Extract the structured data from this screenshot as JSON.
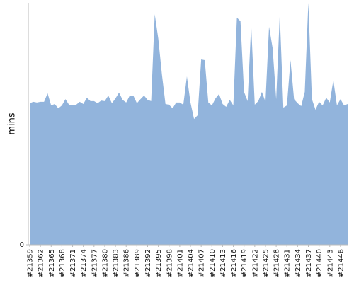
{
  "chart_data": {
    "type": "area",
    "y_label": "mins",
    "color": "#92b4dc",
    "categories": [
      "#21359",
      null,
      null,
      "#21362",
      null,
      null,
      "#21365",
      null,
      null,
      "#21368",
      null,
      null,
      "#21371",
      null,
      null,
      "#21374",
      null,
      null,
      "#21377",
      null,
      null,
      "#21380",
      null,
      null,
      "#21383",
      null,
      null,
      "#21386",
      null,
      null,
      "#21389",
      null,
      null,
      "#21392",
      null,
      null,
      "#21395",
      null,
      null,
      "#21398",
      null,
      null,
      "#21401",
      null,
      null,
      "#21404",
      null,
      null,
      "#21407",
      null,
      null,
      "#21410",
      null,
      null,
      "#21413",
      null,
      null,
      "#21416",
      null,
      null,
      "#21419",
      null,
      null,
      "#21422",
      null,
      null,
      "#21425",
      null,
      null,
      "#21428",
      null,
      null,
      "#21431",
      null,
      null,
      "#21434",
      null,
      null,
      "#21437",
      null,
      null,
      "#21440",
      null,
      null,
      "#21443",
      null,
      null,
      "#21446",
      null,
      null
    ],
    "values": [
      58.5,
      59.1,
      58.8,
      59.1,
      59.1,
      62.6,
      57.6,
      58.2,
      56.4,
      57.6,
      60.2,
      57.9,
      57.9,
      57.9,
      59.1,
      58.2,
      60.8,
      59.4,
      59.4,
      58.5,
      59.6,
      59.4,
      61.7,
      58.5,
      60.5,
      62.9,
      59.9,
      58.8,
      61.7,
      61.7,
      58.5,
      60.2,
      61.7,
      59.9,
      59.4,
      95.3,
      85.1,
      70.5,
      58.2,
      57.9,
      56.4,
      58.8,
      58.8,
      57.9,
      69.6,
      58.8,
      52.0,
      53.5,
      76.6,
      76.3,
      58.8,
      57.6,
      60.5,
      62.3,
      58.2,
      57.0,
      59.9,
      57.6,
      93.9,
      92.4,
      63.2,
      59.4,
      90.9,
      57.9,
      59.4,
      63.2,
      59.1,
      90.1,
      81.3,
      60.2,
      95.3,
      56.7,
      57.6,
      76.3,
      60.2,
      58.5,
      57.3,
      63.2,
      100,
      60.2,
      55.8,
      59.1,
      57.6,
      60.8,
      58.8,
      68.1,
      57.6,
      60.2,
      57.6,
      58.2
    ],
    "ylim": [
      0,
      100
    ],
    "yticks": [
      0
    ]
  }
}
